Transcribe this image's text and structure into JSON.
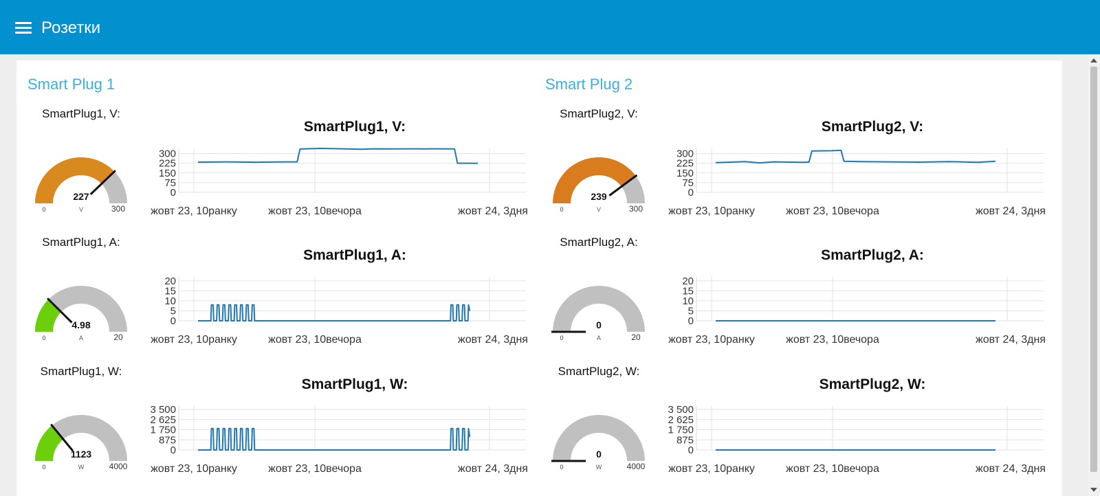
{
  "header": {
    "title": "Розетки",
    "menu_icon": "hamburger-menu-icon"
  },
  "colors": {
    "header": "#0291ce",
    "group_title": "#3bb0e0",
    "series": "#1f77b4",
    "gauge_voltage": "#d98a1e",
    "gauge_voltage_2": "#d97c1e",
    "gauge_low": "#6ccf0c",
    "gauge_track": "#c0c0c0"
  },
  "groups": [
    {
      "title": "Smart Plug 1",
      "widgets": [
        {
          "gauge": {
            "label": "SmartPlug1, V:",
            "value": "227",
            "unit": "V",
            "min": "0",
            "max": "300",
            "fraction": 0.757,
            "color": "#d98a1e"
          },
          "chart_data": {
            "type": "line",
            "title": "SmartPlug1, V:",
            "y_ticks": [
              "300",
              "225",
              "150",
              "75",
              "0"
            ],
            "ylim": [
              0,
              340
            ],
            "x_ticks": [
              "жовт 23, 10ранку",
              "жовт 23, 10вечора",
              "жовт 24, 3дня"
            ],
            "grid": true,
            "series": [
              {
                "x": [
                  0.0,
                  0.1,
                  0.2,
                  0.3,
                  0.34,
                  0.35,
                  0.42,
                  0.5,
                  0.56,
                  0.6,
                  0.68,
                  0.74,
                  0.78,
                  0.8,
                  0.88,
                  0.89,
                  0.96
                ],
                "y": [
                  234,
                  236,
                  233,
                  236,
                  236,
                  335,
                  340,
                  337,
                  333,
                  337,
                  336,
                  337,
                  336,
                  337,
                  336,
                  225,
                  225
                ]
              }
            ]
          }
        },
        {
          "gauge": {
            "label": "SmartPlug1, A:",
            "value": "4.98",
            "unit": "A",
            "min": "0",
            "max": "20",
            "fraction": 0.249,
            "color": "#6ccf0c"
          },
          "chart_data": {
            "type": "line",
            "title": "SmartPlug1, A:",
            "y_ticks": [
              "20",
              "15",
              "10",
              "5",
              "0"
            ],
            "ylim": [
              0,
              22
            ],
            "x_ticks": [
              "жовт 23, 10ранку",
              "жовт 23, 10вечора",
              "жовт 24, 3дня"
            ],
            "grid": true,
            "series": [
              {
                "x": [
                  0.0,
                  0.044,
                  0.046,
                  0.052,
                  0.054,
                  0.064,
                  0.066,
                  0.072,
                  0.074,
                  0.084,
                  0.086,
                  0.092,
                  0.094,
                  0.104,
                  0.106,
                  0.112,
                  0.114,
                  0.124,
                  0.126,
                  0.132,
                  0.134,
                  0.144,
                  0.146,
                  0.152,
                  0.154,
                  0.164,
                  0.166,
                  0.172,
                  0.174,
                  0.184,
                  0.186,
                  0.192,
                  0.194,
                  0.866,
                  0.868,
                  0.874,
                  0.876,
                  0.886,
                  0.888,
                  0.894,
                  0.896,
                  0.906,
                  0.908,
                  0.914,
                  0.916,
                  0.926,
                  0.928,
                  0.932
                ],
                "y": [
                  0,
                  0,
                  8,
                  8,
                  0,
                  0,
                  8,
                  8,
                  0,
                  0,
                  8,
                  8,
                  0,
                  0,
                  8,
                  8,
                  0,
                  0,
                  8,
                  8,
                  0,
                  0,
                  8,
                  8,
                  0,
                  0,
                  8,
                  8,
                  0,
                  0,
                  8,
                  8,
                  0,
                  0,
                  8,
                  8,
                  0,
                  0,
                  8,
                  8,
                  0,
                  0,
                  8,
                  8,
                  0,
                  0,
                  8,
                  5
                ]
              }
            ]
          }
        },
        {
          "gauge": {
            "label": "SmartPlug1, W:",
            "value": "1123",
            "unit": "W",
            "min": "0",
            "max": "4000",
            "fraction": 0.281,
            "color": "#6ccf0c"
          },
          "chart_data": {
            "type": "line",
            "title": "SmartPlug1, W:",
            "y_ticks": [
              "3 500",
              "2 625",
              "1 750",
              "875",
              "0"
            ],
            "ylim": [
              0,
              3800
            ],
            "x_ticks": [
              "жовт 23, 10ранку",
              "жовт 23, 10вечора",
              "жовт 24, 3дня"
            ],
            "grid": true,
            "series": [
              {
                "x": [
                  0.0,
                  0.044,
                  0.046,
                  0.052,
                  0.054,
                  0.064,
                  0.066,
                  0.072,
                  0.074,
                  0.084,
                  0.086,
                  0.092,
                  0.094,
                  0.104,
                  0.106,
                  0.112,
                  0.114,
                  0.124,
                  0.126,
                  0.132,
                  0.134,
                  0.144,
                  0.146,
                  0.152,
                  0.154,
                  0.164,
                  0.166,
                  0.172,
                  0.174,
                  0.184,
                  0.186,
                  0.192,
                  0.194,
                  0.866,
                  0.868,
                  0.874,
                  0.876,
                  0.886,
                  0.888,
                  0.894,
                  0.896,
                  0.906,
                  0.908,
                  0.914,
                  0.916,
                  0.926,
                  0.928,
                  0.932
                ],
                "y": [
                  0,
                  0,
                  1850,
                  1850,
                  0,
                  0,
                  1850,
                  1850,
                  0,
                  0,
                  1850,
                  1850,
                  0,
                  0,
                  1850,
                  1850,
                  0,
                  0,
                  1850,
                  1850,
                  0,
                  0,
                  1850,
                  1850,
                  0,
                  0,
                  1850,
                  1850,
                  0,
                  0,
                  1850,
                  1850,
                  0,
                  0,
                  1850,
                  1850,
                  0,
                  0,
                  1850,
                  1850,
                  0,
                  0,
                  1850,
                  1850,
                  0,
                  0,
                  1850,
                  1123
                ]
              }
            ]
          }
        }
      ]
    },
    {
      "title": "Smart Plug 2",
      "widgets": [
        {
          "gauge": {
            "label": "SmartPlug2, V:",
            "value": "239",
            "unit": "V",
            "min": "0",
            "max": "300",
            "fraction": 0.797,
            "color": "#d97c1e"
          },
          "chart_data": {
            "type": "line",
            "title": "SmartPlug2, V:",
            "y_ticks": [
              "300",
              "225",
              "150",
              "75",
              "0"
            ],
            "ylim": [
              0,
              340
            ],
            "x_ticks": [
              "жовт 23, 10ранку",
              "жовт 23, 10вечора",
              "жовт 24, 3дня"
            ],
            "grid": true,
            "series": [
              {
                "x": [
                  0.0,
                  0.1,
                  0.15,
                  0.2,
                  0.3,
                  0.32,
                  0.33,
                  0.4,
                  0.43,
                  0.44,
                  0.5,
                  0.6,
                  0.7,
                  0.8,
                  0.9,
                  0.96
                ],
                "y": [
                  230,
                  238,
                  228,
                  236,
                  232,
                  234,
                  320,
                  322,
                  325,
                  240,
                  238,
                  236,
                  234,
                  238,
                  232,
                  240
                ]
              }
            ]
          }
        },
        {
          "gauge": {
            "label": "SmartPlug2, A:",
            "value": "0",
            "unit": "A",
            "min": "0",
            "max": "20",
            "fraction": 0.0,
            "color": "#6ccf0c"
          },
          "chart_data": {
            "type": "line",
            "title": "SmartPlug2, A:",
            "y_ticks": [
              "20",
              "15",
              "10",
              "5",
              "0"
            ],
            "ylim": [
              0,
              22
            ],
            "x_ticks": [
              "жовт 23, 10ранку",
              "жовт 23, 10вечора",
              "жовт 24, 3дня"
            ],
            "grid": true,
            "series": [
              {
                "x": [
                  0.0,
                  0.96
                ],
                "y": [
                  0,
                  0
                ]
              }
            ]
          }
        },
        {
          "gauge": {
            "label": "SmartPlug2, W:",
            "value": "0",
            "unit": "W",
            "min": "0",
            "max": "4000",
            "fraction": 0.0,
            "color": "#6ccf0c"
          },
          "chart_data": {
            "type": "line",
            "title": "SmartPlug2, W:",
            "y_ticks": [
              "3 500",
              "2 625",
              "1 750",
              "875",
              "0"
            ],
            "ylim": [
              0,
              3800
            ],
            "x_ticks": [
              "жовт 23, 10ранку",
              "жовт 23, 10вечора",
              "жовт 24, 3дня"
            ],
            "grid": true,
            "series": [
              {
                "x": [
                  0.0,
                  0.96
                ],
                "y": [
                  0,
                  0
                ]
              }
            ]
          }
        }
      ]
    }
  ]
}
